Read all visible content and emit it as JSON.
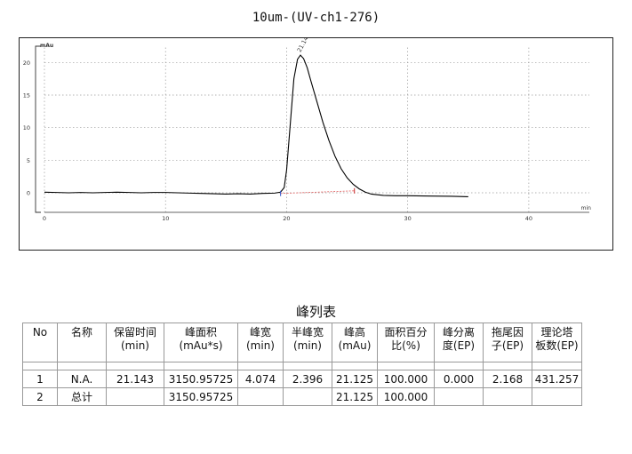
{
  "chart_data": {
    "type": "line",
    "title": "10um-(UV-ch1-276)",
    "ylabel": "mAu",
    "xlabel": "min",
    "xlim": [
      0,
      45
    ],
    "ylim": [
      -3,
      22.5
    ],
    "xticks": [
      0,
      10,
      20,
      30,
      40
    ],
    "yticks": [
      0,
      5,
      10,
      15,
      20
    ],
    "grid": true,
    "peak_label": "21.143",
    "series": [
      {
        "x": [
          0,
          1,
          2,
          3,
          4,
          5,
          6,
          7,
          8,
          9,
          10,
          11,
          12,
          13,
          14,
          15,
          16,
          17,
          18,
          19,
          19.5,
          19.8,
          20,
          20.3,
          20.6,
          20.9,
          21.143,
          21.4,
          21.7,
          22,
          22.5,
          23,
          23.5,
          24,
          24.5,
          25,
          25.5,
          26,
          26.5,
          27,
          28,
          29,
          30,
          32,
          34,
          35
        ],
        "y": [
          0.1,
          0.05,
          0.0,
          0.05,
          0.0,
          0.05,
          0.1,
          0.05,
          0.0,
          0.05,
          0.05,
          0.0,
          -0.05,
          -0.1,
          -0.15,
          -0.2,
          -0.15,
          -0.2,
          -0.1,
          -0.05,
          0.1,
          0.8,
          3.5,
          10.5,
          17.5,
          20.5,
          21.125,
          20.6,
          19.2,
          17.2,
          14.0,
          10.8,
          8.0,
          5.6,
          3.7,
          2.3,
          1.3,
          0.6,
          0.1,
          -0.2,
          -0.4,
          -0.45,
          -0.45,
          -0.5,
          -0.55,
          -0.6
        ]
      }
    ],
    "baseline": {
      "x": [
        19.5,
        25.6
      ],
      "y": [
        -0.1,
        0.3
      ]
    },
    "markers": [
      19.5,
      25.6
    ]
  },
  "table": {
    "title": "峰列表",
    "headers": [
      [
        "No"
      ],
      [
        "名称"
      ],
      [
        "保留时间",
        "(min)"
      ],
      [
        "峰面积",
        "(mAu*s)"
      ],
      [
        "峰宽",
        "(min)"
      ],
      [
        "半峰宽",
        "(min)"
      ],
      [
        "峰高",
        "(mAu)"
      ],
      [
        "面积百分",
        "比(%)"
      ],
      [
        "峰分离",
        "度(EP)"
      ],
      [
        "拖尾因",
        "子(EP)"
      ],
      [
        "理论塔",
        "板数(EP)"
      ]
    ],
    "rows": [
      [
        "1",
        "N.A.",
        "21.143",
        "3150.95725",
        "4.074",
        "2.396",
        "21.125",
        "100.000",
        "0.000",
        "2.168",
        "431.257"
      ],
      [
        "2",
        "总计",
        "",
        "3150.95725",
        "",
        "",
        "21.125",
        "100.000",
        "",
        "",
        ""
      ]
    ]
  },
  "colors": {
    "trace": "#000000",
    "baseline": "#e06060",
    "grid": "#9a9a9a",
    "marker_start": "#3355cc",
    "marker_end": "#cc2222"
  }
}
